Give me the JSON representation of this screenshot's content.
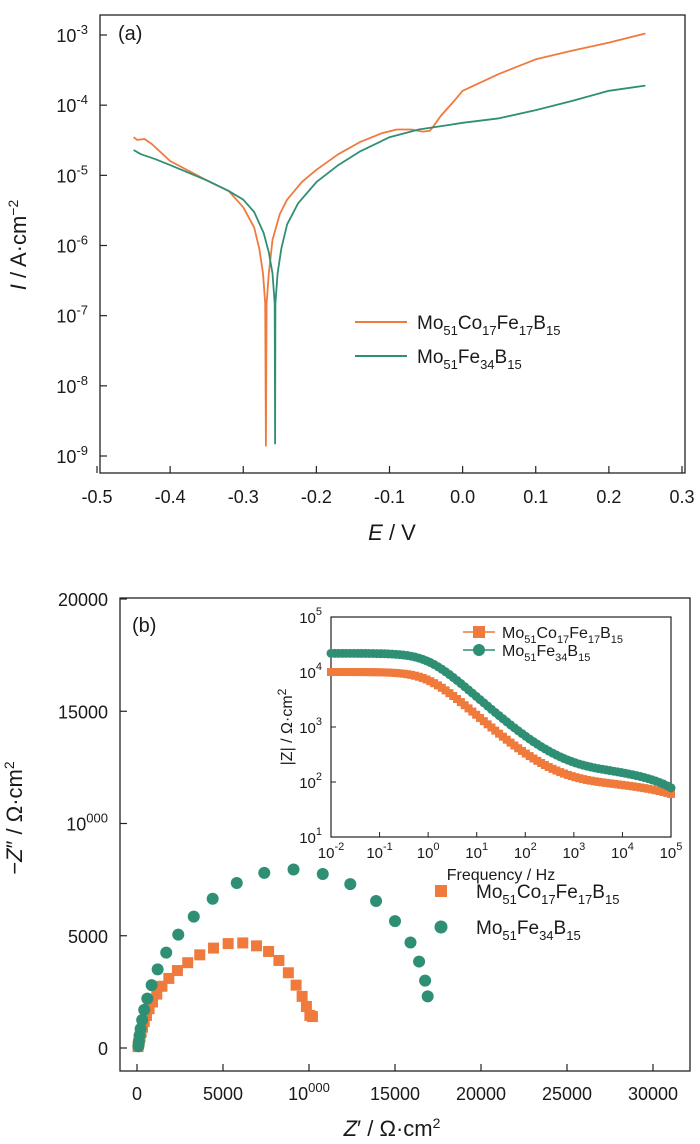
{
  "chart_data": [
    {
      "type": "line",
      "panel_label": "(a)",
      "xlabel": "E / V",
      "ylabel": "I / A·cm−2",
      "xlim": [
        -0.5,
        0.3
      ],
      "ylim": [
        1e-09,
        0.001
      ],
      "yscale": "log",
      "x_ticks": [
        "-0.5",
        "-0.4",
        "-0.3",
        "-0.2",
        "-0.1",
        "0.0",
        "0.1",
        "0.2",
        "0.3"
      ],
      "y_ticks": [
        "10-9",
        "10-8",
        "10-7",
        "10-6",
        "10-5",
        "10-4",
        "10-3"
      ],
      "legend_position": "center-right",
      "series": [
        {
          "name": "Mo51Co17Fe17B15",
          "color": "#f07a3c",
          "x": [
            -0.45,
            -0.445,
            -0.435,
            -0.425,
            -0.4,
            -0.35,
            -0.32,
            -0.3,
            -0.285,
            -0.278,
            -0.273,
            -0.27,
            -0.269,
            -0.268,
            -0.265,
            -0.26,
            -0.25,
            -0.24,
            -0.22,
            -0.2,
            -0.17,
            -0.14,
            -0.11,
            -0.09,
            -0.07,
            -0.055,
            -0.045,
            -0.04,
            -0.03,
            -0.01,
            0.0,
            0.05,
            0.1,
            0.15,
            0.2,
            0.25
          ],
          "y": [
            3.5e-05,
            3.2e-05,
            3.3e-05,
            2.8e-05,
            1.6e-05,
            8.5e-06,
            6e-06,
            3.5e-06,
            1.8e-06,
            9e-07,
            4e-07,
            1.5e-07,
            1.4e-09,
            1.5e-07,
            4e-07,
            1.2e-06,
            2.8e-06,
            4.5e-06,
            8e-06,
            1.2e-05,
            2e-05,
            3e-05,
            4e-05,
            4.5e-05,
            4.5e-05,
            4.2e-05,
            4.3e-05,
            5e-05,
            7e-05,
            0.00012,
            0.00016,
            0.00028,
            0.00045,
            0.0006,
            0.00078,
            0.00105
          ]
        },
        {
          "name": "Mo51Fe34B15",
          "color": "#2f8f75",
          "x": [
            -0.45,
            -0.44,
            -0.42,
            -0.4,
            -0.35,
            -0.32,
            -0.3,
            -0.285,
            -0.272,
            -0.265,
            -0.26,
            -0.257,
            -0.2565,
            -0.256,
            -0.253,
            -0.248,
            -0.24,
            -0.225,
            -0.2,
            -0.17,
            -0.14,
            -0.1,
            -0.06,
            -0.02,
            0.0,
            0.05,
            0.1,
            0.15,
            0.2,
            0.25
          ],
          "y": [
            2.3e-05,
            2e-05,
            1.7e-05,
            1.4e-05,
            8.5e-06,
            6e-06,
            4.5e-06,
            3e-06,
            1.5e-06,
            8e-07,
            4e-07,
            1.5e-07,
            1.5e-09,
            1.5e-07,
            4e-07,
            9e-07,
            2e-06,
            4e-06,
            8e-06,
            1.4e-05,
            2.2e-05,
            3.5e-05,
            4.5e-05,
            5.2e-05,
            5.6e-05,
            6.5e-05,
            8.5e-05,
            0.000115,
            0.00016,
            0.00019
          ]
        }
      ]
    },
    {
      "type": "scatter",
      "panel_label": "(b)",
      "xlabel": "Z′ / Ω·cm2",
      "ylabel": "−Z″ / Ω·cm2",
      "xlim": [
        -1000,
        33000
      ],
      "ylim": [
        -1000,
        20000
      ],
      "x_ticks": [
        "0",
        "5000",
        "10000",
        "15000",
        "20000",
        "25000",
        "30000"
      ],
      "y_ticks": [
        "0",
        "5000",
        "10000",
        "15000",
        "20000"
      ],
      "legend_position": "center-right",
      "series": [
        {
          "name": "Mo51Co17Fe17B15",
          "marker": "square",
          "color": "#f07a3c",
          "x": [
            60,
            90,
            130,
            180,
            240,
            320,
            420,
            550,
            700,
            900,
            1150,
            1450,
            1850,
            2350,
            2950,
            3650,
            4450,
            5300,
            6150,
            6950,
            7650,
            8250,
            8800,
            9250,
            9600,
            9850,
            10050,
            10200
          ],
          "y": [
            60,
            180,
            330,
            500,
            700,
            930,
            1180,
            1450,
            1750,
            2050,
            2400,
            2750,
            3100,
            3450,
            3800,
            4150,
            4450,
            4650,
            4680,
            4550,
            4300,
            3900,
            3350,
            2800,
            2300,
            1850,
            1450,
            1400
          ]
        },
        {
          "name": "Mo51Fe34B15",
          "marker": "circle",
          "color": "#2f8f75",
          "x": [
            80,
            110,
            150,
            210,
            300,
            420,
            600,
            850,
            1200,
            1700,
            2400,
            3300,
            4400,
            5800,
            7400,
            9100,
            10800,
            12400,
            13900,
            15000,
            15900,
            16400,
            16750,
            16900
          ],
          "y": [
            80,
            280,
            550,
            850,
            1250,
            1700,
            2200,
            2800,
            3500,
            4250,
            5050,
            5850,
            6650,
            7350,
            7800,
            7950,
            7750,
            7300,
            6550,
            5650,
            4700,
            3850,
            3000,
            2300
          ]
        }
      ],
      "inset": {
        "type": "scatter",
        "xlabel": "Frequency / Hz",
        "ylabel": "|Z| / Ω·cm2",
        "xscale": "log",
        "yscale": "log",
        "xlim": [
          0.01,
          100000
        ],
        "ylim": [
          10,
          100000
        ],
        "x_ticks": [
          "10-2",
          "10-1",
          "100",
          "101",
          "102",
          "103",
          "104",
          "105"
        ],
        "y_ticks": [
          "101",
          "102",
          "103",
          "104",
          "105"
        ],
        "legend_position": "top-right",
        "series": [
          {
            "name": "Mo51Co17Fe17B15",
            "marker": "square",
            "color": "#f07a3c",
            "low_freq_value": 10000,
            "plateau_value": 85,
            "high_freq_value": 60
          },
          {
            "name": "Mo51Fe34B15",
            "marker": "circle",
            "color": "#2f8f75",
            "low_freq_value": 17000,
            "plateau_value": 110,
            "high_freq_value": 60
          }
        ]
      }
    }
  ]
}
